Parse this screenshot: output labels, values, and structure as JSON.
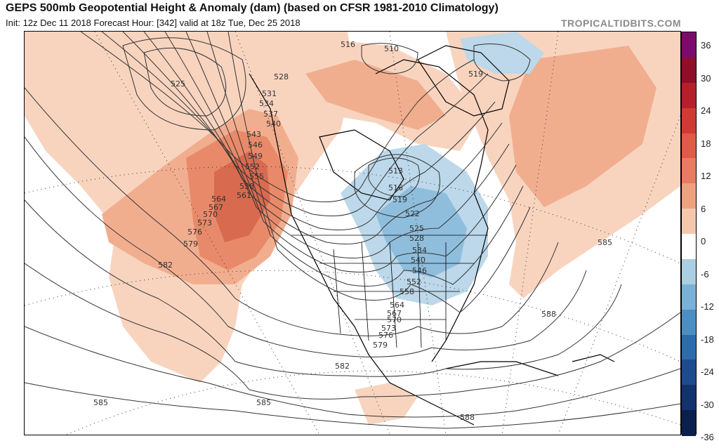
{
  "header": {
    "title": "GEPS 500mb Geopotential Height & Anomaly (dam) (based on CFSR 1981-2010 Climatology)",
    "subtitle": "Init: 12z Dec 11 2018   Forecast Hour: [342]   valid at 18z Tue, Dec 25 2018",
    "brand": "TROPICALTIDBITS.COM"
  },
  "colorbar": {
    "labels": [
      "36",
      "30",
      "24",
      "18",
      "12",
      "6",
      "0",
      "-6",
      "-12",
      "-18",
      "-24",
      "-30",
      "-36"
    ],
    "colors": [
      "#7b0c6e",
      "#8e0f2a",
      "#b5202b",
      "#cf3b33",
      "#de5b45",
      "#e77c61",
      "#eea07f",
      "#f5c7ad",
      "#ffffff",
      "#a9cfe3",
      "#79b2d6",
      "#4a8fc4",
      "#2b6cae",
      "#1c4b91",
      "#12326f",
      "#0b1f4e"
    ]
  },
  "map": {
    "anomaly_colors": {
      "pos1": "#f8d4bf",
      "pos2": "#f1ae8f",
      "pos3": "#e88a6a",
      "pos4": "#d86a4f",
      "neg1": "#bcd8ea",
      "neg2": "#8fbedd"
    },
    "contour_labels": [
      "525",
      "528",
      "531",
      "534",
      "537",
      "540",
      "543",
      "546",
      "549",
      "552",
      "555",
      "558",
      "561",
      "564",
      "567",
      "570",
      "573",
      "576",
      "579",
      "582",
      "585",
      "588",
      "513",
      "516",
      "519",
      "522",
      "525",
      "528",
      "534",
      "540",
      "546",
      "552",
      "558",
      "564",
      "567",
      "570",
      "573",
      "576",
      "579",
      "582",
      "585",
      "588",
      "516",
      "510",
      "519",
      "585",
      "588"
    ]
  }
}
